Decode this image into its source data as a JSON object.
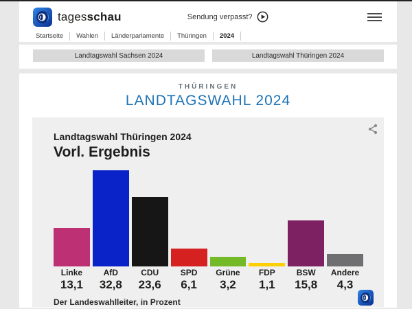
{
  "header": {
    "brand_regular": "tages",
    "brand_bold": "schau",
    "sendung_label": "Sendung verpasst?"
  },
  "breadcrumb": {
    "items": [
      "Startseite",
      "Wahlen",
      "Länderparlamente",
      "Thüringen",
      "2024"
    ]
  },
  "tabs": [
    {
      "label": "Landtagswahl Sachsen 2024"
    },
    {
      "label": "Landtagswahl Thüringen 2024"
    }
  ],
  "page": {
    "kicker": "THÜRINGEN",
    "title": "LANDTAGSWAHL 2024"
  },
  "chart_card": {
    "kicker": "Landtagswahl Thüringen 2024",
    "title": "Vorl. Ergebnis",
    "source": "Der Landeswahlleiter, in Prozent"
  },
  "chart_data": {
    "type": "bar",
    "title": "Landtagswahl Thüringen 2024 – Vorl. Ergebnis",
    "categories": [
      "Linke",
      "AfD",
      "CDU",
      "SPD",
      "Grüne",
      "FDP",
      "BSW",
      "Andere"
    ],
    "values": [
      13.1,
      32.8,
      23.6,
      6.1,
      3.2,
      1.1,
      15.8,
      4.3
    ],
    "value_labels": [
      "13,1",
      "32,8",
      "23,6",
      "6,1",
      "3,2",
      "1,1",
      "15,8",
      "4,3"
    ],
    "bar_colors": [
      "#bd3074",
      "#0a23c8",
      "#161616",
      "#d52220",
      "#74ba28",
      "#fcd005",
      "#7e2163",
      "#6f6f71"
    ],
    "unit": "Prozent",
    "ylim": [
      0,
      34
    ],
    "grid": false,
    "legend": false
  },
  "icons": {
    "brand": "tagesschau-globe-icon",
    "play": "play-icon",
    "menu": "hamburger-menu-icon",
    "share": "share-icon"
  },
  "colors": {
    "accent_blue_title": "#1e73b5",
    "card_background": "#efeff0",
    "page_background": "#e8e8e8",
    "tab_background": "#d9d9d9"
  }
}
